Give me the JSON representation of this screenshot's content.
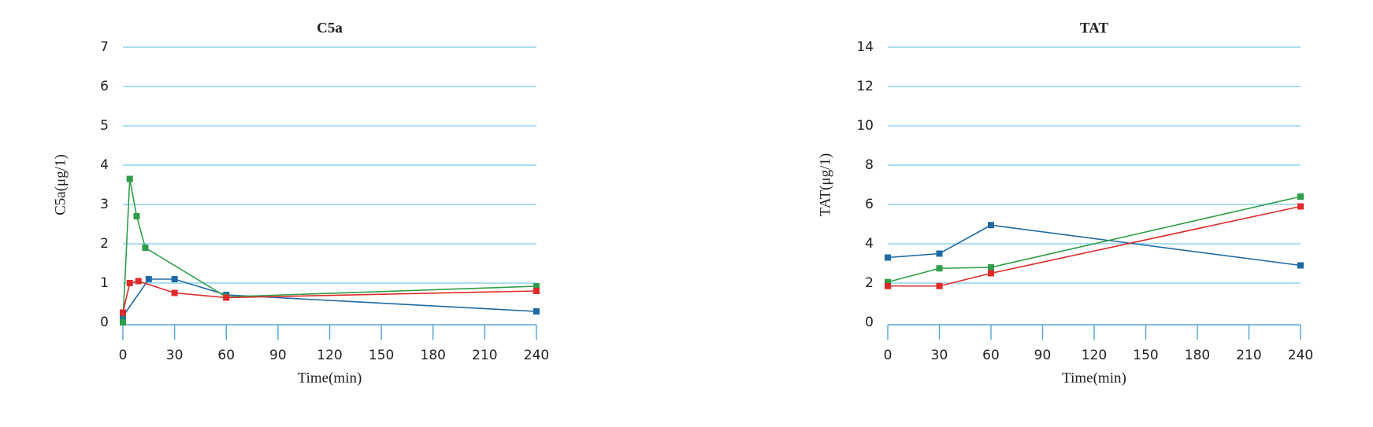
{
  "chart_data": [
    {
      "type": "line",
      "title": "C5a",
      "x_label": "Time(min)",
      "y_label": "C5a(μg/1)",
      "xlim": [
        0,
        240
      ],
      "xticks": [
        0,
        30,
        60,
        90,
        120,
        150,
        180,
        210,
        240
      ],
      "ylim": [
        0,
        7
      ],
      "yticks": [
        0,
        1,
        2,
        3,
        4,
        5,
        6,
        7
      ],
      "grid": true,
      "series": [
        {
          "color": "#1f6aa5",
          "x": [
            0,
            15,
            30,
            60,
            240
          ],
          "values": [
            0.15,
            1.1,
            1.1,
            0.7,
            0.28
          ]
        },
        {
          "color": "#2e9e48",
          "x": [
            0,
            4,
            8,
            13,
            60,
            240
          ],
          "values": [
            0,
            3.65,
            2.7,
            1.9,
            0.65,
            0.92
          ]
        },
        {
          "color": "#e02a2a",
          "x": [
            0,
            4,
            9,
            30,
            60,
            240
          ],
          "values": [
            0.25,
            1.0,
            1.05,
            0.75,
            0.63,
            0.8
          ]
        }
      ]
    },
    {
      "type": "line",
      "title": "TAT",
      "x_label": "Time(min)",
      "y_label": "TAT(μg/1)",
      "xlim": [
        0,
        240
      ],
      "xticks": [
        0,
        30,
        60,
        90,
        120,
        150,
        180,
        210,
        240
      ],
      "ylim": [
        0,
        14
      ],
      "yticks": [
        0,
        2,
        4,
        6,
        8,
        10,
        12,
        14
      ],
      "grid": true,
      "series": [
        {
          "color": "#1f6aa5",
          "x": [
            0,
            30,
            60,
            240
          ],
          "values": [
            3.3,
            3.5,
            4.95,
            2.9
          ]
        },
        {
          "color": "#2e9e48",
          "x": [
            0,
            30,
            60,
            240
          ],
          "values": [
            2.05,
            2.75,
            2.8,
            6.4
          ]
        },
        {
          "color": "#e02a2a",
          "x": [
            0,
            30,
            60,
            240
          ],
          "values": [
            1.85,
            1.85,
            2.5,
            5.9
          ]
        }
      ]
    }
  ]
}
